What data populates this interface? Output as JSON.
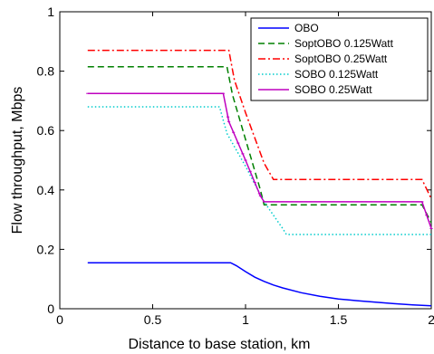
{
  "chart_data": {
    "type": "line",
    "xlabel": "Distance to base station, km",
    "ylabel": "Flow throughput, Mbps",
    "xlim": [
      0,
      2
    ],
    "ylim": [
      0,
      1
    ],
    "xticks": [
      "0",
      "0.5",
      "1",
      "1.5",
      "2"
    ],
    "yticks": [
      "0",
      "0.2",
      "0.4",
      "0.6",
      "0.8",
      "1"
    ],
    "grid": false,
    "legend_position": "top-right",
    "series": [
      {
        "name": "OBO",
        "color": "#0000ff",
        "style": "solid",
        "x": [
          0.15,
          0.92,
          0.95,
          1.0,
          1.05,
          1.1,
          1.15,
          1.2,
          1.3,
          1.4,
          1.5,
          1.6,
          1.7,
          1.8,
          1.9,
          2.0
        ],
        "y": [
          0.155,
          0.155,
          0.145,
          0.125,
          0.106,
          0.092,
          0.08,
          0.07,
          0.054,
          0.042,
          0.033,
          0.027,
          0.022,
          0.017,
          0.013,
          0.01
        ]
      },
      {
        "name": "SoptOBO 0.125Watt",
        "color": "#008000",
        "style": "dashed",
        "x": [
          0.15,
          0.9,
          0.93,
          1.0,
          1.08,
          1.1,
          1.95,
          2.0
        ],
        "y": [
          0.815,
          0.815,
          0.72,
          0.57,
          0.4,
          0.35,
          0.35,
          0.29
        ]
      },
      {
        "name": "SoptOBO 0.25Watt",
        "color": "#ff0000",
        "style": "dashdot",
        "x": [
          0.15,
          0.91,
          0.94,
          1.0,
          1.1,
          1.15,
          1.95,
          2.0
        ],
        "y": [
          0.87,
          0.87,
          0.77,
          0.66,
          0.49,
          0.435,
          0.435,
          0.37
        ]
      },
      {
        "name": "SOBO 0.125Watt",
        "color": "#00cccc",
        "style": "dotted",
        "x": [
          0.15,
          0.86,
          0.9,
          1.0,
          1.1,
          1.2,
          1.22,
          2.0
        ],
        "y": [
          0.68,
          0.68,
          0.59,
          0.48,
          0.36,
          0.27,
          0.25,
          0.25
        ]
      },
      {
        "name": "SOBO 0.25Watt",
        "color": "#bf00bf",
        "style": "solid-marker",
        "x": [
          0.15,
          0.88,
          0.91,
          1.0,
          1.08,
          1.1,
          1.95,
          2.0
        ],
        "y": [
          0.725,
          0.725,
          0.63,
          0.5,
          0.38,
          0.36,
          0.36,
          0.27
        ]
      }
    ]
  }
}
